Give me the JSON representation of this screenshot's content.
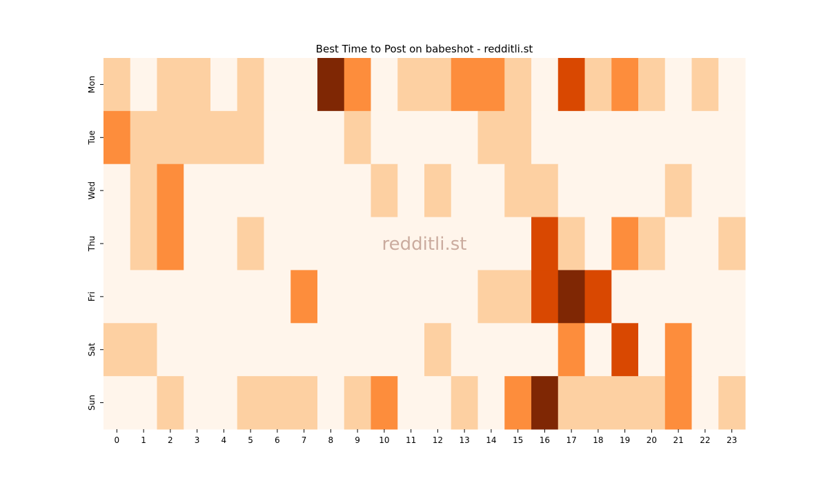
{
  "chart_data": {
    "type": "heatmap",
    "title": "Best Time to Post on babeshot - redditli.st",
    "annotation": "redditli.st",
    "x": [
      0,
      1,
      2,
      3,
      4,
      5,
      6,
      7,
      8,
      9,
      10,
      11,
      12,
      13,
      14,
      15,
      16,
      17,
      18,
      19,
      20,
      21,
      22,
      23
    ],
    "y_categories": [
      "Mon",
      "Tue",
      "Wed",
      "Thu",
      "Fri",
      "Sat",
      "Sun"
    ],
    "values": [
      [
        1,
        0,
        1,
        1,
        0,
        1,
        0,
        0,
        4,
        2,
        0,
        1,
        1,
        2,
        2,
        1,
        0,
        3,
        1,
        2,
        1,
        0,
        1,
        0
      ],
      [
        2,
        1,
        1,
        1,
        1,
        1,
        0,
        0,
        0,
        1,
        0,
        0,
        0,
        0,
        1,
        1,
        0,
        0,
        0,
        0,
        0,
        0,
        0,
        0
      ],
      [
        0,
        1,
        2,
        0,
        0,
        0,
        0,
        0,
        0,
        0,
        1,
        0,
        1,
        0,
        0,
        1,
        1,
        0,
        0,
        0,
        0,
        1,
        0,
        0
      ],
      [
        0,
        1,
        2,
        0,
        0,
        1,
        0,
        0,
        0,
        0,
        0,
        0,
        0,
        0,
        0,
        0,
        3,
        1,
        0,
        2,
        1,
        0,
        0,
        1
      ],
      [
        0,
        0,
        0,
        0,
        0,
        0,
        0,
        2,
        0,
        0,
        0,
        0,
        0,
        0,
        1,
        1,
        3,
        4,
        3,
        0,
        0,
        0,
        0,
        0
      ],
      [
        1,
        1,
        0,
        0,
        0,
        0,
        0,
        0,
        0,
        0,
        0,
        0,
        1,
        0,
        0,
        0,
        0,
        2,
        0,
        3,
        0,
        2,
        0,
        0
      ],
      [
        0,
        0,
        1,
        0,
        0,
        1,
        1,
        1,
        0,
        1,
        2,
        0,
        0,
        1,
        0,
        2,
        4,
        1,
        1,
        1,
        1,
        2,
        0,
        1
      ]
    ],
    "vlim": [
      0,
      4
    ],
    "color_scale": [
      "#fff5eb",
      "#fdd0a2",
      "#fd8d3c",
      "#d94801",
      "#7f2704"
    ]
  }
}
